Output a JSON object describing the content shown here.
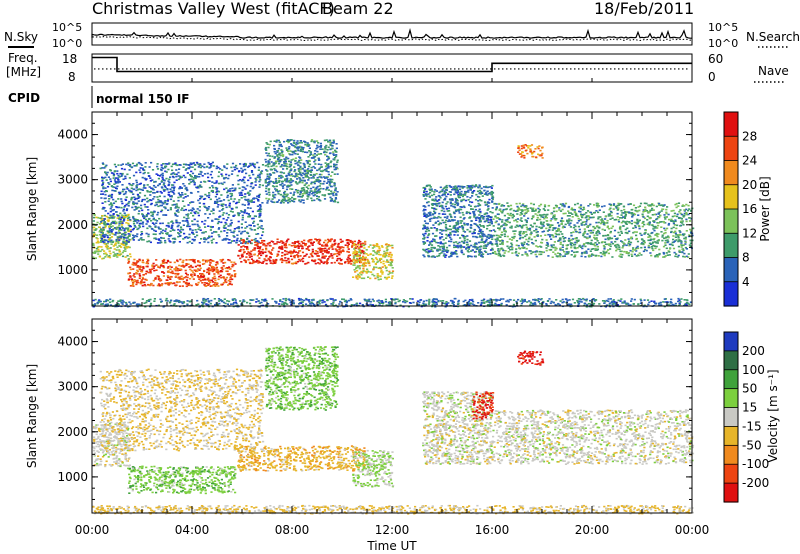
{
  "header": {
    "title": "Christmas Valley West (fitACF)",
    "beam": "Beam 22",
    "date": "18/Feb/2011"
  },
  "noise_panel": {
    "left_label": "N.Sky",
    "right_label": "N.Search",
    "ticks_top": "10^5",
    "ticks_bottom": "10^0",
    "series_solid": "N.Sky",
    "series_dotted": "N.Search"
  },
  "freq_panel": {
    "left_label_1": "Freq.",
    "left_label_2": "[MHz]",
    "left_ticks": [
      "18",
      "8"
    ],
    "right_ticks": [
      "60",
      "0"
    ],
    "right_label": "Nave",
    "freq_steps": [
      {
        "from_hour": 0,
        "to_hour": 1.0,
        "mhz": 16.5
      },
      {
        "from_hour": 1.0,
        "to_hour": 16.0,
        "mhz": 10.5
      },
      {
        "from_hour": 16.0,
        "to_hour": 24.0,
        "mhz": 14.0
      }
    ],
    "nave_level": 28
  },
  "cpid": {
    "label": "CPID",
    "mode": "normal 150 IF"
  },
  "chart_data": [
    {
      "type": "heatmap",
      "name": "power",
      "ylabel": "Slant Range [km]",
      "yticks": [
        "1000",
        "2000",
        "3000",
        "4000"
      ],
      "ylim": [
        200,
        4500
      ],
      "colorbar_label": "Power [dB]",
      "colorbar_ticks": [
        "4",
        "8",
        "12",
        "16",
        "20",
        "24",
        "28"
      ],
      "colorbar_range": [
        0,
        30
      ],
      "colors": [
        "#1a2fd6",
        "#2a63b8",
        "#3e9b6a",
        "#7cc25a",
        "#e6c21c",
        "#f08a1e",
        "#ee4411",
        "#e01010"
      ],
      "regions": [
        {
          "t0": 1.4,
          "t1": 5.7,
          "r0": 650,
          "r1": 1250,
          "level": 24
        },
        {
          "t0": 5.8,
          "t1": 10.9,
          "r0": 1150,
          "r1": 1700,
          "level": 26
        },
        {
          "t0": 0.0,
          "t1": 1.5,
          "r0": 1250,
          "r1": 2250,
          "level": 14
        },
        {
          "t0": 10.4,
          "t1": 12.0,
          "r0": 800,
          "r1": 1600,
          "level": 16
        },
        {
          "t0": 0.3,
          "t1": 6.8,
          "r0": 1600,
          "r1": 3400,
          "level": 6
        },
        {
          "t0": 6.9,
          "t1": 9.8,
          "r0": 2500,
          "r1": 3900,
          "level": 8
        },
        {
          "t0": 13.2,
          "t1": 16.0,
          "r0": 1300,
          "r1": 2900,
          "level": 7
        },
        {
          "t0": 16.0,
          "t1": 24.0,
          "r0": 1300,
          "r1": 2500,
          "level": 10
        },
        {
          "t0": 17.0,
          "t1": 18.0,
          "r0": 3500,
          "r1": 3800,
          "level": 22
        },
        {
          "t0": 0.0,
          "t1": 24.0,
          "r0": 200,
          "r1": 380,
          "level": 7
        }
      ]
    },
    {
      "type": "heatmap",
      "name": "velocity",
      "ylabel": "Slant Range [km]",
      "yticks": [
        "1000",
        "2000",
        "3000",
        "4000"
      ],
      "ylim": [
        200,
        4500
      ],
      "xlabel": "Time UT",
      "xticks": [
        "00:00",
        "04:00",
        "08:00",
        "12:00",
        "16:00",
        "20:00",
        "00:00"
      ],
      "xlim": [
        0,
        24
      ],
      "colorbar_label": "Velocity [m s⁻¹]",
      "colorbar_ticks": [
        "200",
        "100",
        "50",
        "15",
        "-15",
        "-50",
        "-100",
        "-200"
      ],
      "colorbar_range": [
        -250,
        250
      ],
      "colors": [
        "#1f3bbf",
        "#2f6f45",
        "#3fa23b",
        "#7ccf3e",
        "#c9c9c4",
        "#e7b52a",
        "#f08a1e",
        "#ee4411",
        "#e01010"
      ],
      "regions": [
        {
          "t0": 1.4,
          "t1": 5.7,
          "r0": 650,
          "r1": 1250,
          "level": 60
        },
        {
          "t0": 5.8,
          "t1": 10.9,
          "r0": 1150,
          "r1": 1700,
          "level": -60
        },
        {
          "t0": 0.0,
          "t1": 1.5,
          "r0": 1250,
          "r1": 2250,
          "level": 0
        },
        {
          "t0": 10.4,
          "t1": 12.0,
          "r0": 800,
          "r1": 1600,
          "level": 30
        },
        {
          "t0": 0.3,
          "t1": 6.8,
          "r0": 1600,
          "r1": 3400,
          "level": -30
        },
        {
          "t0": 6.9,
          "t1": 9.8,
          "r0": 2500,
          "r1": 3900,
          "level": 60
        },
        {
          "t0": 13.2,
          "t1": 16.0,
          "r0": 1300,
          "r1": 2900,
          "level": 0
        },
        {
          "t0": 16.0,
          "t1": 24.0,
          "r0": 1300,
          "r1": 2500,
          "level": 0
        },
        {
          "t0": 17.0,
          "t1": 18.0,
          "r0": 3500,
          "r1": 3800,
          "level": -220
        },
        {
          "t0": 15.2,
          "t1": 16.0,
          "r0": 2300,
          "r1": 2900,
          "level": -200
        },
        {
          "t0": 0.0,
          "t1": 24.0,
          "r0": 200,
          "r1": 380,
          "level": -40
        }
      ]
    }
  ]
}
